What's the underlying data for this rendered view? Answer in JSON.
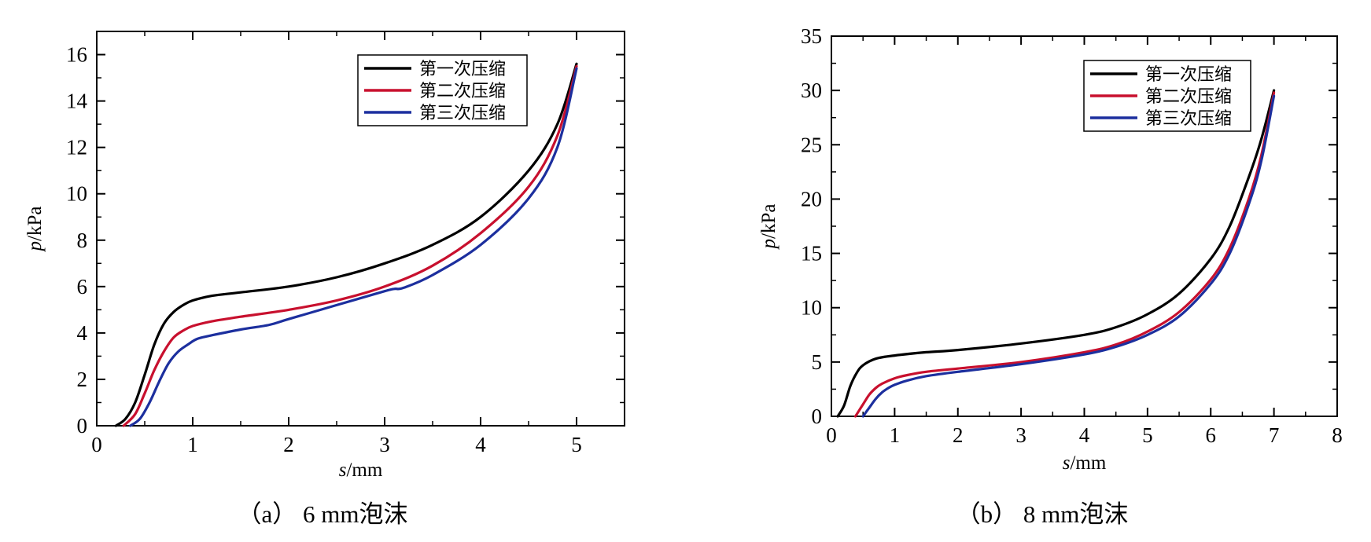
{
  "chart_data": [
    {
      "type": "line",
      "caption": "（a） 6 mm泡沫",
      "xlabel_italic": "s",
      "xlabel_unit": "/mm",
      "ylabel_italic": "p",
      "ylabel_unit": "/kPa",
      "xlim": [
        0,
        5.5
      ],
      "ylim": [
        0,
        17
      ],
      "xticks": [
        0,
        1,
        2,
        3,
        4,
        5
      ],
      "yticks": [
        0,
        2,
        4,
        6,
        8,
        10,
        12,
        14,
        16
      ],
      "grid": false,
      "legend_position": "top-right",
      "series": [
        {
          "name": "第一次压缩",
          "color": "#000000",
          "x": [
            0.2,
            0.3,
            0.4,
            0.5,
            0.6,
            0.7,
            0.8,
            0.9,
            1.0,
            1.2,
            1.5,
            2.0,
            2.5,
            3.0,
            3.5,
            4.0,
            4.5,
            4.8,
            5.0
          ],
          "y": [
            0,
            0.3,
            1.0,
            2.2,
            3.5,
            4.4,
            4.9,
            5.2,
            5.4,
            5.6,
            5.75,
            6.0,
            6.4,
            7.0,
            7.8,
            9.0,
            11.0,
            13.0,
            15.6
          ]
        },
        {
          "name": "第二次压缩",
          "color": "#c8102e",
          "x": [
            0.28,
            0.4,
            0.5,
            0.6,
            0.7,
            0.8,
            0.9,
            1.0,
            1.2,
            1.5,
            2.0,
            2.5,
            3.0,
            3.5,
            4.0,
            4.5,
            4.8,
            5.0
          ],
          "y": [
            0,
            0.5,
            1.4,
            2.4,
            3.2,
            3.8,
            4.1,
            4.3,
            4.5,
            4.7,
            5.0,
            5.4,
            6.0,
            6.9,
            8.3,
            10.3,
            12.5,
            15.5
          ]
        },
        {
          "name": "第三次压缩",
          "color": "#1c2f9e",
          "x": [
            0.35,
            0.45,
            0.55,
            0.65,
            0.75,
            0.85,
            0.95,
            1.05,
            1.2,
            1.5,
            1.8,
            2.0,
            2.5,
            3.0,
            3.1,
            3.2,
            3.5,
            4.0,
            4.5,
            4.8,
            5.0
          ],
          "y": [
            0,
            0.3,
            1.0,
            1.9,
            2.7,
            3.2,
            3.5,
            3.75,
            3.9,
            4.15,
            4.35,
            4.6,
            5.2,
            5.8,
            5.9,
            5.95,
            6.5,
            7.8,
            9.8,
            12.0,
            15.4
          ]
        }
      ]
    },
    {
      "type": "line",
      "caption": "（b） 8 mm泡沫",
      "xlabel_italic": "s",
      "xlabel_unit": "/mm",
      "ylabel_italic": "p",
      "ylabel_unit": "/kPa",
      "xlim": [
        0,
        8
      ],
      "ylim": [
        0,
        35
      ],
      "xticks": [
        0,
        1,
        2,
        3,
        4,
        5,
        6,
        7,
        8
      ],
      "yticks": [
        0,
        5,
        10,
        15,
        20,
        25,
        30,
        35
      ],
      "grid": false,
      "legend_position": "top-right",
      "series": [
        {
          "name": "第一次压缩",
          "color": "#000000",
          "x": [
            0.1,
            0.2,
            0.3,
            0.4,
            0.5,
            0.7,
            1.0,
            1.5,
            2.0,
            3.0,
            4.0,
            4.5,
            5.0,
            5.5,
            6.0,
            6.3,
            6.6,
            6.8,
            7.0
          ],
          "y": [
            0,
            1.0,
            2.8,
            4.0,
            4.7,
            5.3,
            5.6,
            5.9,
            6.1,
            6.7,
            7.5,
            8.2,
            9.4,
            11.3,
            14.5,
            17.5,
            22.0,
            25.5,
            30.0
          ]
        },
        {
          "name": "第二次压缩",
          "color": "#c8102e",
          "x": [
            0.38,
            0.5,
            0.6,
            0.7,
            0.8,
            1.0,
            1.2,
            1.5,
            2.0,
            3.0,
            4.0,
            4.5,
            5.0,
            5.5,
            6.0,
            6.3,
            6.6,
            6.8,
            7.0
          ],
          "y": [
            0,
            1.1,
            2.0,
            2.6,
            3.0,
            3.5,
            3.8,
            4.1,
            4.4,
            5.0,
            5.9,
            6.6,
            7.8,
            9.6,
            12.6,
            15.5,
            20.0,
            24.0,
            29.8
          ]
        },
        {
          "name": "第三次压缩",
          "color": "#1c2f9e",
          "x": [
            0.5,
            0.6,
            0.7,
            0.8,
            0.9,
            1.0,
            1.2,
            1.5,
            2.0,
            3.0,
            4.0,
            4.5,
            5.0,
            5.5,
            6.0,
            6.3,
            6.6,
            6.8,
            7.0
          ],
          "y": [
            0,
            0.8,
            1.6,
            2.2,
            2.6,
            2.9,
            3.3,
            3.7,
            4.1,
            4.8,
            5.7,
            6.4,
            7.5,
            9.2,
            12.2,
            15.0,
            19.5,
            23.5,
            29.5
          ]
        }
      ]
    }
  ]
}
